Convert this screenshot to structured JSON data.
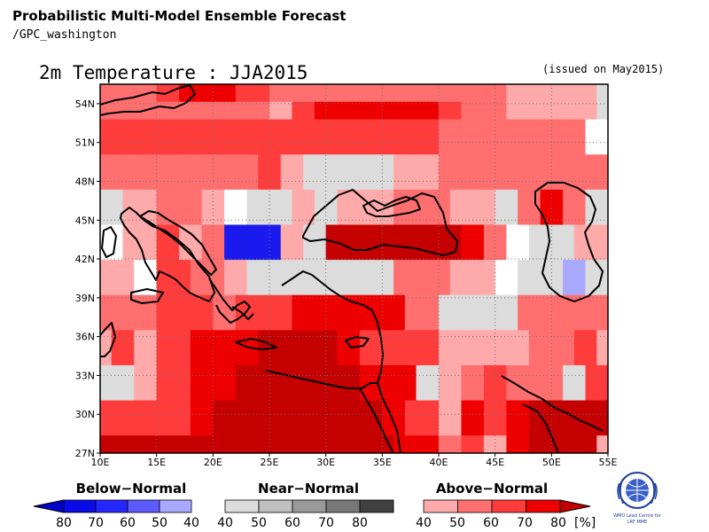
{
  "header": {
    "title": "Probabilistic Multi-Model Ensemble Forecast",
    "subtitle": "/GPC_washington"
  },
  "map": {
    "title": "2m Temperature : JJA2015",
    "issued": "(issued on May2015)",
    "lon_range": [
      10,
      55
    ],
    "lat_range": [
      27,
      55.5
    ],
    "x_ticks": [
      "10E",
      "15E",
      "20E",
      "25E",
      "30E",
      "35E",
      "40E",
      "45E",
      "50E",
      "55E"
    ],
    "y_ticks": [
      "54N",
      "51N",
      "48N",
      "45N",
      "42N",
      "39N",
      "36N",
      "33N",
      "30N",
      "27N"
    ],
    "grid": true,
    "colors": {
      "N": "#dcdcdc",
      "W": "#ffffff",
      "A4": "#ffaaaa",
      "A5": "#ff6f6f",
      "A6": "#ff3c3c",
      "A7": "#ee0000",
      "A8": "#c40000",
      "B4": "#a8a8ff",
      "B8": "#1a1aee"
    },
    "cells": [
      [
        "A5",
        "A5",
        "A5",
        "A5",
        "A5",
        "A6",
        "A6",
        "A7",
        "A7",
        "A7",
        "A7",
        "A7",
        "A6",
        "A6",
        "A6",
        "A5",
        "A5",
        "A5",
        "A5",
        "A5",
        "A5",
        "A5",
        "A5",
        "A5",
        "A5",
        "A5",
        "A5",
        "A5",
        "A5",
        "A5",
        "A5",
        "A5",
        "A5",
        "A5",
        "A5",
        "A5",
        "A4",
        "A4",
        "A4",
        "A4",
        "A4",
        "A4",
        "A4",
        "A4",
        "N"
      ],
      [
        "A5",
        "A5",
        "A5",
        "A5",
        "A5",
        "A5",
        "A5",
        "A5",
        "A5",
        "A5",
        "A5",
        "A5",
        "A5",
        "A5",
        "A5",
        "A4",
        "A4",
        "A6",
        "A6",
        "A7",
        "A7",
        "A7",
        "A7",
        "A7",
        "A7",
        "A7",
        "A7",
        "A7",
        "A7",
        "A7",
        "A6",
        "A6",
        "A5",
        "A5",
        "A5",
        "A5",
        "A4",
        "A4",
        "A4",
        "A4",
        "A4",
        "A4",
        "A4",
        "A4",
        "N"
      ],
      [
        "A6",
        "A6",
        "A6",
        "A6",
        "A6",
        "A6",
        "A6",
        "A6",
        "A6",
        "A6",
        "A6",
        "A6",
        "A6",
        "A6",
        "A6",
        "A6",
        "A6",
        "A6",
        "A6",
        "A6",
        "A6",
        "A6",
        "A6",
        "A6",
        "A6",
        "A6",
        "A6",
        "A6",
        "A6",
        "A6",
        "A5",
        "A5",
        "A5",
        "A5",
        "A5",
        "A5",
        "A5",
        "A5",
        "A5",
        "A5",
        "A5",
        "A5",
        "A5",
        "W",
        "W"
      ],
      [
        "A6",
        "A6",
        "A6",
        "A6",
        "A6",
        "A6",
        "A6",
        "A6",
        "A6",
        "A6",
        "A6",
        "A6",
        "A6",
        "A6",
        "A6",
        "A6",
        "A6",
        "A6",
        "A6",
        "A6",
        "A6",
        "A6",
        "A6",
        "A6",
        "A6",
        "A6",
        "A6",
        "A6",
        "A6",
        "A6",
        "A5",
        "A5",
        "A5",
        "A5",
        "A5",
        "A5",
        "A5",
        "A5",
        "A5",
        "A5",
        "A5",
        "A5",
        "A5",
        "W",
        "W"
      ],
      [
        "A5",
        "A5",
        "A5",
        "A5",
        "A5",
        "A5",
        "A5",
        "A5",
        "A5",
        "A5",
        "A5",
        "A5",
        "A5",
        "A5",
        "A6",
        "A6",
        "A4",
        "A4",
        "N",
        "N",
        "N",
        "N",
        "N",
        "N",
        "N",
        "N",
        "A4",
        "A4",
        "A4",
        "A4",
        "A5",
        "A5",
        "A5",
        "A5",
        "A5",
        "A5",
        "A5",
        "A5",
        "A5",
        "A5",
        "A5",
        "A5",
        "A5",
        "A5",
        "A5"
      ],
      [
        "A5",
        "A5",
        "A5",
        "A5",
        "A5",
        "A5",
        "A5",
        "A5",
        "A5",
        "A5",
        "A5",
        "A5",
        "A5",
        "A5",
        "A6",
        "A6",
        "A4",
        "A4",
        "N",
        "N",
        "N",
        "N",
        "N",
        "N",
        "N",
        "N",
        "A4",
        "A4",
        "A4",
        "A4",
        "A5",
        "A5",
        "A5",
        "A5",
        "A5",
        "A5",
        "A5",
        "A5",
        "A5",
        "A5",
        "A5",
        "A5",
        "A5",
        "A5",
        "A5"
      ],
      [
        "N",
        "N",
        "A4",
        "A4",
        "A4",
        "A5",
        "A5",
        "A5",
        "A5",
        "A4",
        "A4",
        "W",
        "W",
        "N",
        "N",
        "N",
        "N",
        "A4",
        "A4",
        "N",
        "N",
        "A4",
        "A4",
        "A4",
        "A4",
        "A4",
        "A5",
        "A5",
        "A5",
        "A5",
        "A5",
        "A4",
        "A4",
        "A4",
        "A4",
        "N",
        "N",
        "A5",
        "A5",
        "A7",
        "A7",
        "A5",
        "A5",
        "N",
        "N"
      ],
      [
        "N",
        "N",
        "A4",
        "A4",
        "A4",
        "A5",
        "A5",
        "A5",
        "A5",
        "A4",
        "A4",
        "W",
        "W",
        "N",
        "N",
        "N",
        "N",
        "A4",
        "A4",
        "N",
        "N",
        "A4",
        "A4",
        "A4",
        "A4",
        "A4",
        "A5",
        "A5",
        "A5",
        "A5",
        "A5",
        "A4",
        "A4",
        "A4",
        "A4",
        "N",
        "N",
        "A5",
        "A5",
        "A7",
        "A7",
        "A5",
        "A5",
        "N",
        "N"
      ],
      [
        "W",
        "W",
        "A4",
        "A4",
        "A4",
        "A6",
        "A6",
        "A4",
        "A4",
        "A5",
        "A5",
        "B8",
        "B8",
        "B8",
        "B8",
        "B8",
        "A4",
        "A4",
        "N",
        "N",
        "A8",
        "A8",
        "A8",
        "A8",
        "A8",
        "A8",
        "A8",
        "A8",
        "A8",
        "A8",
        "A8",
        "A8",
        "A7",
        "A7",
        "A5",
        "A5",
        "W",
        "W",
        "N",
        "N",
        "N",
        "N",
        "A4",
        "A4",
        "A4"
      ],
      [
        "W",
        "W",
        "A4",
        "A4",
        "A4",
        "A6",
        "A6",
        "A4",
        "A4",
        "A5",
        "A5",
        "B8",
        "B8",
        "B8",
        "B8",
        "B8",
        "A4",
        "A4",
        "N",
        "N",
        "A8",
        "A8",
        "A8",
        "A8",
        "A8",
        "A8",
        "A8",
        "A8",
        "A8",
        "A8",
        "A8",
        "A8",
        "A7",
        "A7",
        "A5",
        "A5",
        "W",
        "W",
        "N",
        "N",
        "N",
        "N",
        "A4",
        "A4",
        "A4"
      ],
      [
        "A4",
        "A4",
        "A4",
        "W",
        "W",
        "A6",
        "A6",
        "A6",
        "A5",
        "A5",
        "A5",
        "A4",
        "A4",
        "N",
        "N",
        "N",
        "N",
        "N",
        "N",
        "N",
        "N",
        "N",
        "N",
        "N",
        "N",
        "N",
        "A5",
        "A5",
        "A5",
        "A5",
        "A5",
        "A4",
        "A4",
        "A4",
        "A4",
        "W",
        "W",
        "N",
        "N",
        "N",
        "N",
        "B4",
        "B4",
        "N",
        "N"
      ],
      [
        "A4",
        "A4",
        "A4",
        "W",
        "W",
        "A6",
        "A6",
        "A6",
        "A5",
        "A5",
        "A5",
        "A4",
        "A4",
        "N",
        "N",
        "N",
        "N",
        "N",
        "N",
        "N",
        "N",
        "N",
        "N",
        "N",
        "N",
        "N",
        "A5",
        "A5",
        "A5",
        "A5",
        "A5",
        "A4",
        "A4",
        "A4",
        "A4",
        "W",
        "W",
        "N",
        "N",
        "N",
        "N",
        "B4",
        "B4",
        "N",
        "N"
      ],
      [
        "A5",
        "A5",
        "A5",
        "A5",
        "A5",
        "A6",
        "A6",
        "A6",
        "A6",
        "A6",
        "A5",
        "A5",
        "A6",
        "A6",
        "A6",
        "A6",
        "A6",
        "A7",
        "A7",
        "A7",
        "A7",
        "A7",
        "A7",
        "A7",
        "A7",
        "A7",
        "A7",
        "A5",
        "A5",
        "A5",
        "N",
        "N",
        "N",
        "N",
        "N",
        "N",
        "N",
        "A5",
        "A5",
        "A5",
        "A5",
        "A5",
        "A5",
        "A5",
        "A5"
      ],
      [
        "A5",
        "A5",
        "A5",
        "A5",
        "A5",
        "A6",
        "A6",
        "A6",
        "A6",
        "A6",
        "A5",
        "A5",
        "A6",
        "A6",
        "A6",
        "A6",
        "A6",
        "A7",
        "A7",
        "A7",
        "A7",
        "A7",
        "A7",
        "A7",
        "A7",
        "A7",
        "A7",
        "A5",
        "A5",
        "A5",
        "N",
        "N",
        "N",
        "N",
        "N",
        "N",
        "N",
        "A5",
        "A5",
        "A5",
        "A5",
        "A5",
        "A5",
        "A5",
        "A5"
      ],
      [
        "A4",
        "A6",
        "A6",
        "A4",
        "A4",
        "A6",
        "A6",
        "A6",
        "A7",
        "A7",
        "A7",
        "A7",
        "A7",
        "A7",
        "A8",
        "A8",
        "A8",
        "A8",
        "A8",
        "A8",
        "A8",
        "A7",
        "A7",
        "A6",
        "A6",
        "A6",
        "A6",
        "A6",
        "A6",
        "A6",
        "A4",
        "A4",
        "A4",
        "A4",
        "A4",
        "A4",
        "A4",
        "A4",
        "A5",
        "A5",
        "A5",
        "A5",
        "A6",
        "A6",
        "A4"
      ],
      [
        "A4",
        "A6",
        "A6",
        "A4",
        "A4",
        "A6",
        "A6",
        "A6",
        "A7",
        "A7",
        "A7",
        "A7",
        "A7",
        "A7",
        "A8",
        "A8",
        "A8",
        "A8",
        "A8",
        "A8",
        "A8",
        "A7",
        "A7",
        "A6",
        "A6",
        "A6",
        "A6",
        "A6",
        "A6",
        "A6",
        "A4",
        "A4",
        "A4",
        "A4",
        "A4",
        "A4",
        "A4",
        "A4",
        "A5",
        "A5",
        "A5",
        "A5",
        "A6",
        "A6",
        "A4"
      ],
      [
        "N",
        "N",
        "N",
        "A4",
        "A4",
        "A6",
        "A6",
        "A6",
        "A7",
        "A7",
        "A7",
        "A7",
        "A8",
        "A8",
        "A8",
        "A8",
        "A8",
        "A8",
        "A8",
        "A8",
        "A8",
        "A8",
        "A8",
        "A7",
        "A7",
        "A7",
        "A7",
        "A7",
        "N",
        "N",
        "A4",
        "A4",
        "A5",
        "A5",
        "A6",
        "A6",
        "A5",
        "A5",
        "A5",
        "A5",
        "A5",
        "N",
        "N",
        "A6",
        "A6"
      ],
      [
        "N",
        "N",
        "N",
        "A4",
        "A4",
        "A6",
        "A6",
        "A6",
        "A7",
        "A7",
        "A7",
        "A7",
        "A8",
        "A8",
        "A8",
        "A8",
        "A8",
        "A8",
        "A8",
        "A8",
        "A8",
        "A8",
        "A8",
        "A7",
        "A7",
        "A7",
        "A7",
        "A7",
        "N",
        "N",
        "A4",
        "A4",
        "A5",
        "A5",
        "A6",
        "A6",
        "A5",
        "A5",
        "A5",
        "A5",
        "A5",
        "N",
        "N",
        "A6",
        "A6"
      ],
      [
        "A6",
        "A6",
        "A6",
        "A6",
        "A6",
        "A6",
        "A6",
        "A6",
        "A7",
        "A7",
        "A8",
        "A8",
        "A8",
        "A8",
        "A8",
        "A8",
        "A8",
        "A8",
        "A8",
        "A8",
        "A8",
        "A8",
        "A8",
        "A8",
        "A8",
        "A7",
        "A7",
        "A6",
        "A6",
        "A6",
        "A4",
        "A4",
        "A7",
        "A7",
        "A6",
        "A6",
        "A7",
        "A7",
        "A8",
        "A8",
        "A8",
        "A8",
        "A8",
        "A8",
        "A8"
      ],
      [
        "A6",
        "A6",
        "A6",
        "A6",
        "A6",
        "A6",
        "A6",
        "A6",
        "A7",
        "A7",
        "A8",
        "A8",
        "A8",
        "A8",
        "A8",
        "A8",
        "A8",
        "A8",
        "A8",
        "A8",
        "A8",
        "A8",
        "A8",
        "A8",
        "A8",
        "A7",
        "A7",
        "A6",
        "A6",
        "A6",
        "A4",
        "A4",
        "A7",
        "A7",
        "A6",
        "A6",
        "A7",
        "A7",
        "A8",
        "A8",
        "A8",
        "A8",
        "A8",
        "A8",
        "A8"
      ],
      [
        "A8",
        "A8",
        "A8",
        "A8",
        "A8",
        "A8",
        "A8",
        "A8",
        "A8",
        "A8",
        "A8",
        "A8",
        "A8",
        "A8",
        "A8",
        "A8",
        "A8",
        "A8",
        "A8",
        "A8",
        "A8",
        "A8",
        "A8",
        "A8",
        "A8",
        "A8",
        "A7",
        "A7",
        "A7",
        "A7",
        "A5",
        "A5",
        "A6",
        "A6",
        "A4",
        "A4",
        "A7",
        "A7",
        "A8",
        "A8",
        "A8",
        "A8",
        "A8",
        "A8",
        "A4"
      ]
    ]
  },
  "legend": {
    "below": {
      "label": "Below−Normal",
      "colors": [
        "#0000cc",
        "#0a0ae6",
        "#2626ff",
        "#5a5aff",
        "#a8a8ff"
      ],
      "ticks": [
        "80",
        "70",
        "60",
        "50",
        "40"
      ]
    },
    "near": {
      "label": "Near−Normal",
      "colors": [
        "#dcdcdc",
        "#c0c0c0",
        "#999999",
        "#777777",
        "#404040"
      ],
      "ticks": [
        "40",
        "50",
        "60",
        "70",
        "80"
      ]
    },
    "above": {
      "label": "Above−Normal",
      "colors": [
        "#ffaaaa",
        "#ff6f6f",
        "#ff3c3c",
        "#ee0000",
        "#c40000"
      ],
      "ticks": [
        "40",
        "50",
        "60",
        "70",
        "80"
      ]
    },
    "unit": "[%]"
  },
  "logo": {
    "line1": "WMO Lead Centre for",
    "line2": "LRF MME"
  }
}
